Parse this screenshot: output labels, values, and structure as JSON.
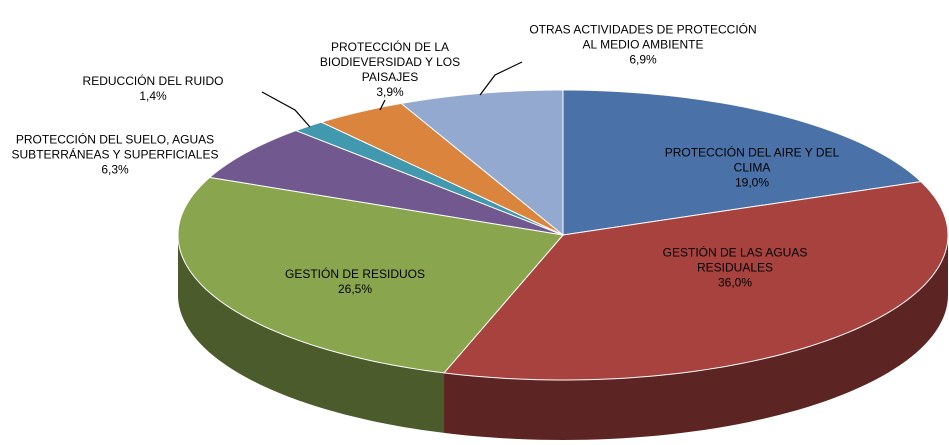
{
  "chart_data": {
    "type": "pie",
    "categories": [
      "PROTECCIÓN DEL AIRE Y DEL CLIMA",
      "GESTIÓN DE LAS AGUAS RESIDUALES",
      "GESTIÓN DE RESIDUOS",
      "PROTECCIÓN DEL SUELO, AGUAS SUBTERRÁNEAS Y SUPERFICIALES",
      "REDUCCIÓN DEL RUIDO",
      "PROTECCIÓN DE LA BIODIEVERSIDAD Y LOS PAISAJES",
      "OTRAS ACTIVIDADES DE PROTECCIÓN AL MEDIO AMBIENTE"
    ],
    "values": [
      19.0,
      36.0,
      26.5,
      6.3,
      1.4,
      3.9,
      6.9
    ],
    "value_labels": [
      "19,0%",
      "36,0%",
      "26,5%",
      "6,3%",
      "1,4%",
      "3,9%",
      "6,9%"
    ],
    "colors": [
      "#4a72a8",
      "#a8423f",
      "#89a54e",
      "#71588f",
      "#4198af",
      "#db843d",
      "#93a9cf"
    ]
  }
}
